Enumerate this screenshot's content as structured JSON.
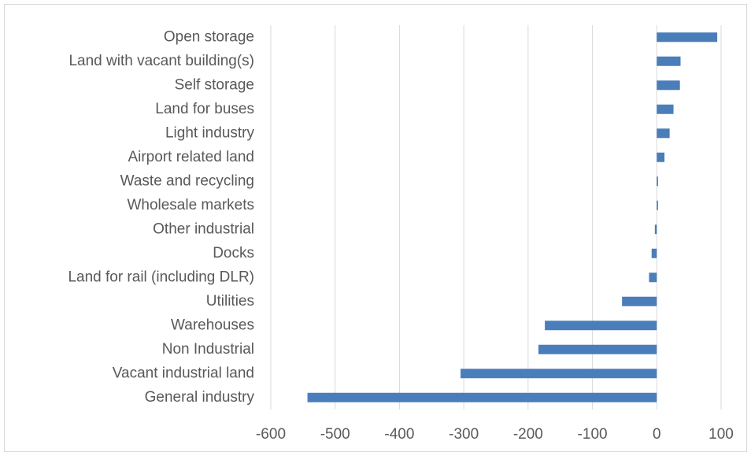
{
  "chart_data": {
    "type": "barh",
    "categories": [
      "Open storage",
      "Land with vacant building(s)",
      "Self storage",
      "Land for buses",
      "Light industry",
      "Airport related land",
      "Waste and recycling",
      "Wholesale markets",
      "Other industrial",
      "Docks",
      "Land for rail (including DLR)",
      "Utilities",
      "Warehouses",
      "Non Industrial",
      "Vacant industrial land",
      "General industry"
    ],
    "values": [
      94,
      37,
      36,
      26,
      20,
      12,
      2,
      2,
      -3,
      -8,
      -12,
      -54,
      -174,
      -184,
      -305,
      -543
    ],
    "color": "#4a7ebb",
    "xlim": [
      -600,
      100
    ],
    "xticks": [
      -600,
      -500,
      -400,
      -300,
      -200,
      -100,
      0,
      100
    ],
    "grid": true
  }
}
